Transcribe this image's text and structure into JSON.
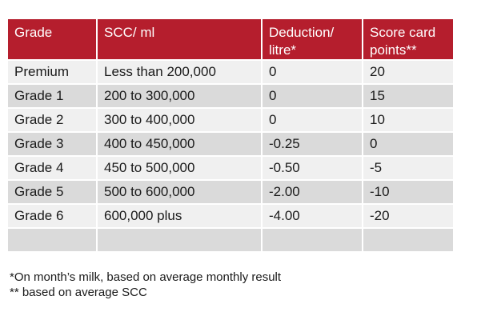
{
  "table": {
    "headers": [
      "Grade",
      "SCC/ ml",
      "Deduction/ litre*",
      "Score card points**"
    ],
    "rows": [
      [
        "Premium",
        "Less than 200,000",
        "0",
        "20"
      ],
      [
        "Grade 1",
        "200 to 300,000",
        "0",
        "15"
      ],
      [
        "Grade 2",
        "300 to 400,000",
        "0",
        "10"
      ],
      [
        "Grade 3",
        "400 to 450,000",
        "-0.25",
        "0"
      ],
      [
        "Grade 4",
        "450 to 500,000",
        "-0.50",
        "-5"
      ],
      [
        "Grade 5",
        "500 to 600,000",
        "-2.00",
        "-10"
      ],
      [
        "Grade 6",
        "600,000 plus",
        "-4.00",
        "-20"
      ],
      [
        "",
        "",
        "",
        ""
      ]
    ],
    "colors": {
      "header_bg": "#b51e2d",
      "row_light": "#f0f0f0",
      "row_dark": "#dadada"
    }
  },
  "footnotes": [
    "*On month’s milk, based on average monthly result",
    "** based  on average SCC"
  ]
}
